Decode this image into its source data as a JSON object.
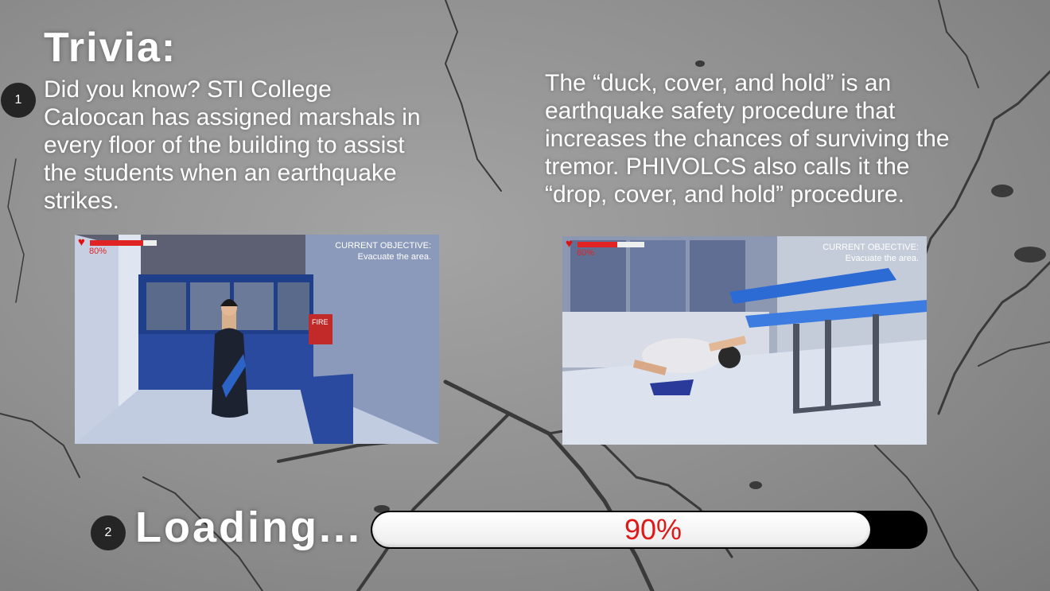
{
  "trivia": {
    "title": "Trivia:",
    "fact_left": "Did you know? STI College Caloocan has assigned marshals in every floor of the building to assist the students when an earthquake strikes.",
    "fact_right": "The “duck, cover, and hold” is an earthquake safety procedure that increases the chances of surviving the tremor. PHIVOLCS also calls it the “drop, cover, and hold” procedure."
  },
  "badges": {
    "first": "1",
    "second": "2"
  },
  "screenshots": [
    {
      "health_text": "80%",
      "health_fraction": 0.8,
      "objective_title": "CURRENT OBJECTIVE:",
      "objective_text": "Evacuate the area.",
      "sign_text": "FIRE"
    },
    {
      "health_text": "60%",
      "health_fraction": 0.6,
      "objective_title": "CURRENT OBJECTIVE:",
      "objective_text": "Evacuate the area."
    }
  ],
  "loading": {
    "label": "Loading...",
    "percent_text": "90%",
    "progress_fraction": 0.9
  },
  "colors": {
    "health_red": "#e02424",
    "progress_text_red": "#e01818",
    "text_white": "#ffffff",
    "badge_dark": "#252525"
  },
  "icons": {
    "heart": "heart-icon"
  }
}
